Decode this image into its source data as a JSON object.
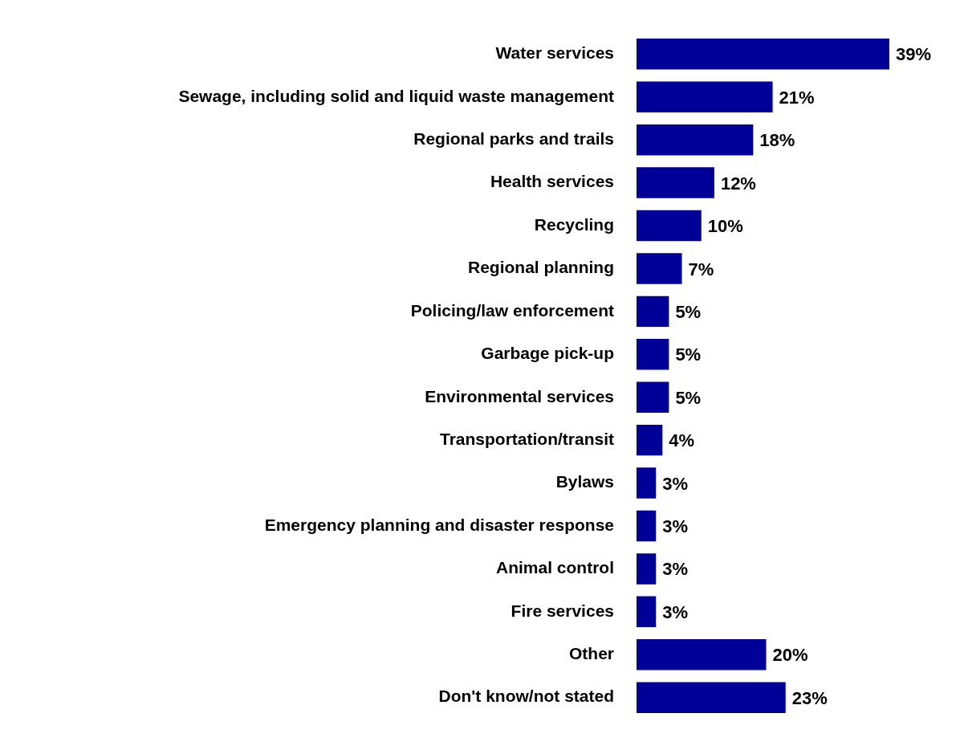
{
  "chart_data": {
    "type": "bar",
    "orientation": "horizontal",
    "categories": [
      "Water services",
      "Sewage, including solid and liquid waste management",
      "Regional parks and trails",
      "Health services",
      "Recycling",
      "Regional planning",
      "Policing/law enforcement",
      "Garbage pick-up",
      "Environmental services",
      "Transportation/transit",
      "Bylaws",
      "Emergency planning and disaster response",
      "Animal control",
      "Fire services",
      "Other",
      "Don't know/not stated"
    ],
    "values": [
      39,
      21,
      18,
      12,
      10,
      7,
      5,
      5,
      5,
      4,
      3,
      3,
      3,
      3,
      20,
      23
    ],
    "value_labels": [
      "39%",
      "21%",
      "18%",
      "12%",
      "10%",
      "7%",
      "5%",
      "5%",
      "5%",
      "4%",
      "3%",
      "3%",
      "3%",
      "3%",
      "20%",
      "23%"
    ],
    "color": "#000099"
  }
}
